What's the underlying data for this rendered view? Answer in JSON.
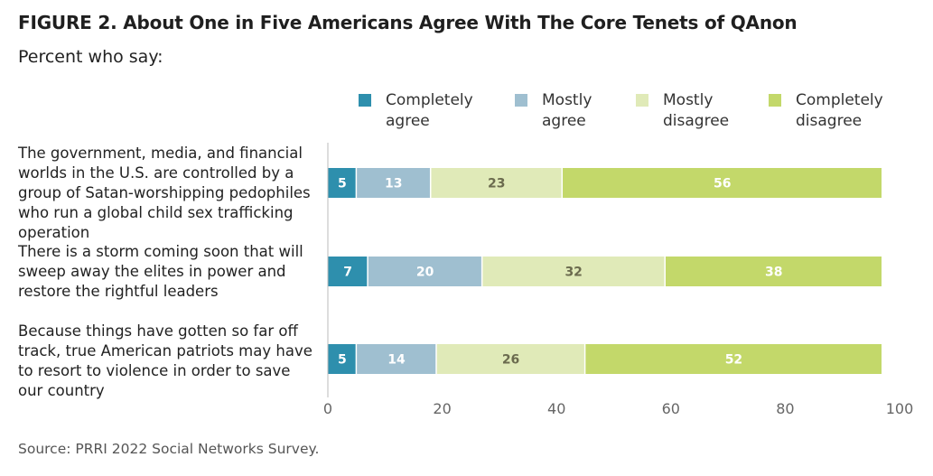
{
  "figure": {
    "title": "FIGURE 2.  About One in Five Americans Agree With The Core Tenets of QAnon",
    "subtitle": "Percent who say:",
    "source": "Source: PRRI 2022 Social Networks Survey."
  },
  "chart_data": {
    "type": "bar",
    "orientation": "horizontal",
    "stacked": true,
    "title": "FIGURE 2.  About One in Five Americans Agree With The Core Tenets of QAnon",
    "subtitle": "Percent who say:",
    "categories": [
      "The government, media, and financial worlds in the U.S. are controlled by a group of Satan-worshipping pedophiles who run a global child sex trafficking operation",
      "There is a storm coming soon that will sweep away the elites in power and restore the rightful leaders",
      "Because things have gotten so far off track, true American patriots may have to resort to violence in order to save our country"
    ],
    "series": [
      {
        "name": "Completely agree",
        "color": "#2e8fad",
        "label_color": "#ffffff",
        "values": [
          5,
          7,
          5
        ]
      },
      {
        "name": "Mostly agree",
        "color": "#9fbfd0",
        "label_color": "#ffffff",
        "values": [
          13,
          20,
          14
        ]
      },
      {
        "name": "Mostly disagree",
        "color": "#e0eab8",
        "label_color": "#6b6b4e",
        "values": [
          23,
          32,
          26
        ]
      },
      {
        "name": "Completely disagree",
        "color": "#c3d86a",
        "label_color": "#ffffff",
        "values": [
          56,
          38,
          52
        ]
      }
    ],
    "xlim": [
      0,
      100
    ],
    "xticks": [
      0,
      20,
      40,
      60,
      80,
      100
    ],
    "grid": false,
    "legend_position": "top"
  }
}
